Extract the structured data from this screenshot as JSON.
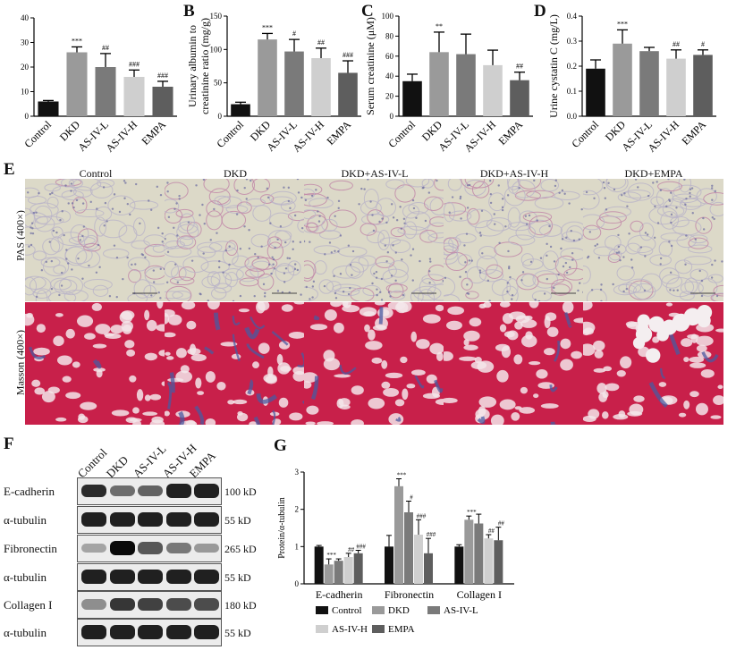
{
  "figure": {
    "panel_labels": {
      "B": "B",
      "C": "C",
      "D": "D",
      "E": "E",
      "F": "F",
      "G": "G"
    },
    "histology": {
      "columns": [
        "Control",
        "DKD",
        "DKD+AS-IV-L",
        "DKD+AS-IV-H",
        "DKD+EMPA"
      ],
      "rows": [
        "PAS (400×)",
        "Masson (400×)"
      ],
      "row_colors": {
        "pas_bg": "#dcd9c8",
        "pas_stain": "#c084a8",
        "masson_bg": "#c8204a",
        "masson_fibrosis": "#4a5aa0"
      }
    },
    "western_blot": {
      "groups": [
        "Control",
        "DKD",
        "AS-IV-L",
        "AS-IV-H",
        "EMPA"
      ],
      "rows": [
        {
          "protein": "E-cadherin",
          "size": "100 kD",
          "intensity": [
            0.85,
            0.55,
            0.6,
            0.9,
            0.9
          ]
        },
        {
          "protein": "α-tubulin",
          "size": "55 kD",
          "intensity": [
            0.9,
            0.9,
            0.9,
            0.9,
            0.9
          ]
        },
        {
          "protein": "Fibronectin",
          "size": "265 kD",
          "intensity": [
            0.3,
            1.0,
            0.65,
            0.5,
            0.35
          ]
        },
        {
          "protein": "α-tubulin",
          "size": "55 kD",
          "intensity": [
            0.9,
            0.9,
            0.9,
            0.9,
            0.9
          ]
        },
        {
          "protein": "Collagen I",
          "size": "180 kD",
          "intensity": [
            0.4,
            0.8,
            0.75,
            0.7,
            0.7
          ]
        },
        {
          "protein": "α-tubulin",
          "size": "55 kD",
          "intensity": [
            0.9,
            0.9,
            0.9,
            0.9,
            0.9
          ]
        }
      ]
    }
  },
  "chart_data": [
    {
      "id": "A",
      "type": "bar",
      "categories": [
        "Control",
        "DKD",
        "AS-IV-L",
        "AS-IV-H",
        "EMPA"
      ],
      "values": [
        6,
        26,
        20,
        16,
        12
      ],
      "errors": [
        0.4,
        2.2,
        5.5,
        2.8,
        2.2
      ],
      "annotations": [
        "",
        "***",
        "##",
        "###",
        "###"
      ],
      "yticks": [
        "40",
        "30",
        "20",
        "10",
        "0"
      ],
      "ylim": [
        0,
        40
      ],
      "ylabel": "",
      "colors": [
        "#111111",
        "#9a9a9a",
        "#7a7a7a",
        "#cfcfcf",
        "#5e5e5e"
      ]
    },
    {
      "id": "B",
      "type": "bar",
      "categories": [
        "Control",
        "DKD",
        "AS-IV-L",
        "AS-IV-H",
        "EMPA"
      ],
      "values": [
        18,
        115,
        97,
        87,
        65
      ],
      "errors": [
        3,
        9,
        18,
        15,
        18
      ],
      "annotations": [
        "",
        "***",
        "#",
        "##",
        "###"
      ],
      "yticks": [
        "0",
        "50",
        "100",
        "150"
      ],
      "ylim": [
        0,
        150
      ],
      "ylabel": "Urinary albumin to creatinine ratio (mg/g)",
      "colors": [
        "#111111",
        "#9a9a9a",
        "#7a7a7a",
        "#cfcfcf",
        "#5e5e5e"
      ]
    },
    {
      "id": "C",
      "type": "bar",
      "categories": [
        "Control",
        "DKD",
        "AS-IV-L",
        "AS-IV-H",
        "EMPA"
      ],
      "values": [
        35,
        64,
        62,
        51,
        36
      ],
      "errors": [
        7,
        20,
        20,
        15,
        8
      ],
      "annotations": [
        "",
        "**",
        "",
        "",
        "##"
      ],
      "yticks": [
        "0",
        "20",
        "40",
        "60",
        "80",
        "100"
      ],
      "ylim": [
        0,
        100
      ],
      "ylabel": "Serum creatinine (μM)",
      "colors": [
        "#111111",
        "#9a9a9a",
        "#7a7a7a",
        "#cfcfcf",
        "#5e5e5e"
      ]
    },
    {
      "id": "D",
      "type": "bar",
      "categories": [
        "Control",
        "DKD",
        "AS-IV-L",
        "AS-IV-H",
        "EMPA"
      ],
      "values": [
        0.19,
        0.29,
        0.26,
        0.23,
        0.245
      ],
      "errors": [
        0.035,
        0.055,
        0.015,
        0.035,
        0.02
      ],
      "annotations": [
        "",
        "***",
        "",
        "##",
        "#"
      ],
      "yticks": [
        "0.0",
        "0.1",
        "0.2",
        "0.3",
        "0.4"
      ],
      "ylim": [
        0,
        0.4
      ],
      "ylabel": "Urine cystatin C (mg/L)",
      "colors": [
        "#111111",
        "#9a9a9a",
        "#7a7a7a",
        "#cfcfcf",
        "#5e5e5e"
      ]
    },
    {
      "id": "G",
      "type": "bar",
      "categories": [
        "E-cadherin",
        "Fibronectin",
        "Collagen I"
      ],
      "series": [
        {
          "name": "Control",
          "values": [
            1.0,
            1.0,
            1.0
          ],
          "errors": [
            0.03,
            0.3,
            0.05
          ],
          "annotations": [
            "",
            "",
            ""
          ]
        },
        {
          "name": "DKD",
          "values": [
            0.52,
            2.62,
            1.72
          ],
          "errors": [
            0.15,
            0.2,
            0.1
          ],
          "annotations": [
            "***",
            "***",
            "***"
          ]
        },
        {
          "name": "AS-IV-L",
          "values": [
            0.62,
            1.92,
            1.62
          ],
          "errors": [
            0.05,
            0.3,
            0.25
          ],
          "annotations": [
            "",
            "#",
            ""
          ]
        },
        {
          "name": "AS-IV-H",
          "values": [
            0.72,
            1.32,
            1.22
          ],
          "errors": [
            0.1,
            0.4,
            0.1
          ],
          "annotations": [
            "##",
            "###",
            "##"
          ]
        },
        {
          "name": "EMPA",
          "values": [
            0.82,
            0.82,
            1.17
          ],
          "errors": [
            0.08,
            0.4,
            0.35
          ],
          "annotations": [
            "###",
            "###",
            "##"
          ]
        }
      ],
      "yticks": [
        "0",
        "1",
        "2",
        "3"
      ],
      "ylim": [
        0,
        3
      ],
      "ylabel": "Protein/α-tubulin",
      "legend": [
        "Control",
        "DKD",
        "AS-IV-L",
        "AS-IV-H",
        "EMPA"
      ],
      "colors": [
        "#111111",
        "#9a9a9a",
        "#7a7a7a",
        "#cfcfcf",
        "#5e5e5e"
      ]
    }
  ]
}
